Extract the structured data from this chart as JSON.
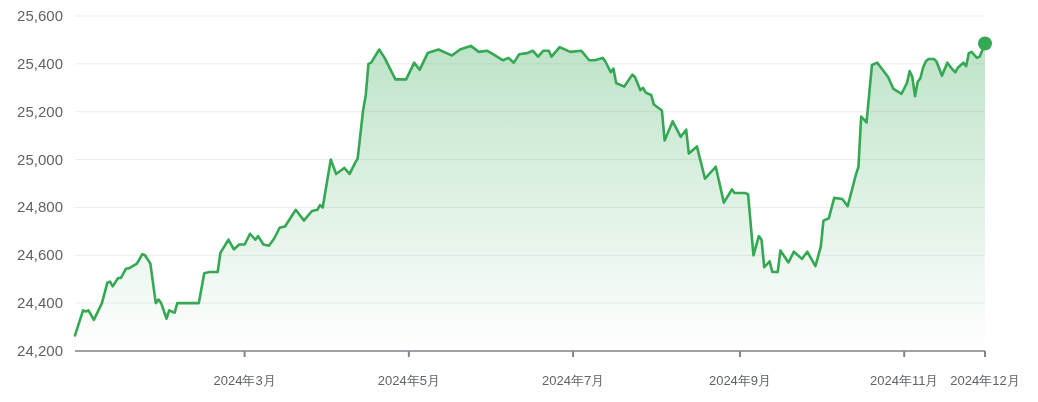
{
  "chart_data": {
    "type": "area",
    "xlim": [
      "2023-12-29",
      "2024-12-01"
    ],
    "xticks": [
      {
        "value": "2024-03-01",
        "label": "2024年3月"
      },
      {
        "value": "2024-05-01",
        "label": "2024年5月"
      },
      {
        "value": "2024-07-01",
        "label": "2024年7月"
      },
      {
        "value": "2024-09-01",
        "label": "2024年9月"
      },
      {
        "value": "2024-11-01",
        "label": "2024年11月"
      },
      {
        "value": "2024-12-01",
        "label": "2024年12月"
      }
    ],
    "ylim": [
      24200,
      25600
    ],
    "yticks": [
      {
        "value": 24200,
        "label": "24,200"
      },
      {
        "value": 24400,
        "label": "24,400"
      },
      {
        "value": 24600,
        "label": "24,600"
      },
      {
        "value": 24800,
        "label": "24,800"
      },
      {
        "value": 25000,
        "label": "25,000"
      },
      {
        "value": 25200,
        "label": "25,200"
      },
      {
        "value": 25400,
        "label": "25,400"
      },
      {
        "value": 25600,
        "label": "25,600"
      }
    ],
    "grid": "y",
    "series": [
      {
        "color": "#34a853",
        "x": [
          "2023-12-29",
          "2024-01-01",
          "2024-01-02",
          "2024-01-03",
          "2024-01-05",
          "2024-01-08",
          "2024-01-10",
          "2024-01-11",
          "2024-01-12",
          "2024-01-14",
          "2024-01-15",
          "2024-01-17",
          "2024-01-18",
          "2024-01-21",
          "2024-01-23",
          "2024-01-24",
          "2024-01-26",
          "2024-01-28",
          "2024-01-29",
          "2024-01-30",
          "2024-02-01",
          "2024-02-02",
          "2024-02-04",
          "2024-02-05",
          "2024-02-13",
          "2024-02-15",
          "2024-02-17",
          "2024-02-20",
          "2024-02-21",
          "2024-02-24",
          "2024-02-26",
          "2024-02-27",
          "2024-02-28",
          "2024-03-01",
          "2024-03-03",
          "2024-03-05",
          "2024-03-06",
          "2024-03-08",
          "2024-03-10",
          "2024-03-12",
          "2024-03-14",
          "2024-03-16",
          "2024-03-20",
          "2024-03-23",
          "2024-03-26",
          "2024-03-28",
          "2024-03-29",
          "2024-03-30",
          "2024-04-02",
          "2024-04-04",
          "2024-04-07",
          "2024-04-09",
          "2024-04-11",
          "2024-04-12",
          "2024-04-14",
          "2024-04-15",
          "2024-04-16",
          "2024-04-17",
          "2024-04-20",
          "2024-04-22",
          "2024-04-26",
          "2024-04-30",
          "2024-05-03",
          "2024-05-05",
          "2024-05-08",
          "2024-05-12",
          "2024-05-15",
          "2024-05-17",
          "2024-05-20",
          "2024-05-24",
          "2024-05-27",
          "2024-05-30",
          "2024-06-02",
          "2024-06-05",
          "2024-06-07",
          "2024-06-09",
          "2024-06-11",
          "2024-06-14",
          "2024-06-16",
          "2024-06-18",
          "2024-06-20",
          "2024-06-22",
          "2024-06-23",
          "2024-06-26",
          "2024-06-30",
          "2024-07-04",
          "2024-07-07",
          "2024-07-09",
          "2024-07-12",
          "2024-07-13",
          "2024-07-15",
          "2024-07-16",
          "2024-07-17",
          "2024-07-20",
          "2024-07-23",
          "2024-07-24",
          "2024-07-26",
          "2024-07-27",
          "2024-07-28",
          "2024-07-30",
          "2024-07-31",
          "2024-08-03",
          "2024-08-04",
          "2024-08-07",
          "2024-08-10",
          "2024-08-12",
          "2024-08-13",
          "2024-08-16",
          "2024-08-19",
          "2024-08-23",
          "2024-08-26",
          "2024-08-29",
          "2024-08-30",
          "2024-09-03",
          "2024-09-04",
          "2024-09-06",
          "2024-09-08",
          "2024-09-09",
          "2024-09-10",
          "2024-09-12",
          "2024-09-13",
          "2024-09-15",
          "2024-09-16",
          "2024-09-19",
          "2024-09-21",
          "2024-09-24",
          "2024-09-26",
          "2024-09-29",
          "2024-10-01",
          "2024-10-02",
          "2024-10-04",
          "2024-10-06",
          "2024-10-09",
          "2024-10-11",
          "2024-10-14",
          "2024-10-15",
          "2024-10-16",
          "2024-10-18",
          "2024-10-20",
          "2024-10-22",
          "2024-10-26",
          "2024-10-28",
          "2024-10-31",
          "2024-11-02",
          "2024-11-03",
          "2024-11-04",
          "2024-11-05",
          "2024-11-06",
          "2024-11-07",
          "2024-11-08",
          "2024-11-09",
          "2024-11-10",
          "2024-11-12",
          "2024-11-13",
          "2024-11-15",
          "2024-11-17",
          "2024-11-19",
          "2024-11-20",
          "2024-11-21",
          "2024-11-23",
          "2024-11-24",
          "2024-11-25",
          "2024-11-26",
          "2024-11-28",
          "2024-11-29",
          "2024-12-01"
        ],
        "values": [
          24265,
          24370,
          24365,
          24370,
          24330,
          24400,
          24485,
          24490,
          24470,
          24505,
          24505,
          24545,
          24545,
          24565,
          24605,
          24600,
          24565,
          24400,
          24415,
          24400,
          24335,
          24370,
          24360,
          24400,
          24400,
          24525,
          24530,
          24530,
          24610,
          24665,
          24625,
          24635,
          24645,
          24645,
          24690,
          24665,
          24680,
          24645,
          24640,
          24670,
          24715,
          24720,
          24790,
          24745,
          24785,
          24790,
          24810,
          24800,
          25000,
          24940,
          24965,
          24940,
          24985,
          25005,
          25205,
          25270,
          25400,
          25405,
          25460,
          25425,
          25335,
          25335,
          25405,
          25375,
          25445,
          25460,
          25445,
          25435,
          25460,
          25475,
          25450,
          25455,
          25435,
          25415,
          25425,
          25405,
          25440,
          25445,
          25455,
          25430,
          25455,
          25455,
          25430,
          25470,
          25450,
          25455,
          25415,
          25415,
          25425,
          25410,
          25365,
          25380,
          25320,
          25305,
          25355,
          25345,
          25290,
          25300,
          25280,
          25270,
          25230,
          25205,
          25080,
          25160,
          25095,
          25125,
          25025,
          25055,
          24920,
          24970,
          24820,
          24875,
          24860,
          24860,
          24855,
          24600,
          24680,
          24665,
          24550,
          24575,
          24530,
          24530,
          24620,
          24570,
          24615,
          24585,
          24615,
          24555,
          24635,
          24745,
          24755,
          24840,
          24835,
          24805,
          24935,
          24970,
          25180,
          25155,
          25395,
          25405,
          25345,
          25295,
          25275,
          25320,
          25370,
          25345,
          25265,
          25325,
          25340,
          25385,
          25410,
          25420,
          25420,
          25410,
          25350,
          25405,
          25375,
          25365,
          25385,
          25405,
          25390,
          25445,
          25450,
          25425,
          25430,
          25485
        ]
      },
      {
        "type": "scatter",
        "color": "#34a853",
        "marker": "circle",
        "x": [
          "2024-12-01"
        ],
        "values": [
          25485
        ]
      }
    ]
  }
}
